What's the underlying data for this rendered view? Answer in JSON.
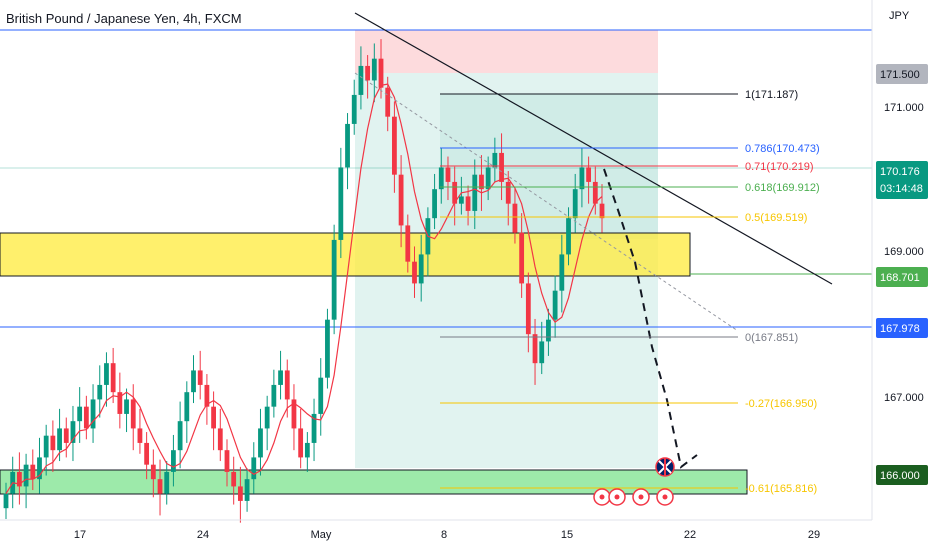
{
  "header": {
    "title": "British Pound / Japanese Yen, 4h, FXCM"
  },
  "axis": {
    "currency": "JPY",
    "ticks": [
      "171.000",
      "169.000",
      "167.000"
    ],
    "xticks": [
      "17",
      "24",
      "May",
      "8",
      "15",
      "22",
      "29"
    ]
  },
  "price_badges": [
    {
      "value": "171.500",
      "bg": "#b2b5be",
      "fg": "#131722"
    },
    {
      "value": "170.176",
      "sub": "03:14:48",
      "bg": "#089981",
      "fg": "#ffffff"
    },
    {
      "value": "168.701",
      "bg": "#4caf50",
      "fg": "#ffffff"
    },
    {
      "value": "167.978",
      "bg": "#2962ff",
      "fg": "#ffffff"
    },
    {
      "value": "166.000",
      "bg": "#1b5e20",
      "fg": "#ffffff"
    }
  ],
  "fib_levels": [
    {
      "label": "1(171.187)",
      "price": 171.187,
      "color": "#131722"
    },
    {
      "label": "0.786(170.473)",
      "price": 170.473,
      "color": "#2962ff"
    },
    {
      "label": "0.71(170.219)",
      "price": 170.219,
      "color": "#f23645"
    },
    {
      "label": "0.618(169.912)",
      "price": 169.912,
      "color": "#4caf50"
    },
    {
      "label": "0.5(169.519)",
      "price": 169.519,
      "color": "#f7c600"
    },
    {
      "label": "0(167.851)",
      "price": 167.851,
      "color": "#787b86"
    },
    {
      "label": "-0.27(166.950)",
      "price": 166.95,
      "color": "#f7c600"
    },
    {
      "label": "-0.61(165.816)",
      "price": 165.816,
      "color": "#f7c600"
    }
  ],
  "colors": {
    "up": "#089981",
    "down": "#f23645",
    "ma": "#f23645"
  },
  "chart_data": {
    "type": "candlestick",
    "title": "British Pound / Japanese Yen, 4h, FXCM",
    "ylabel": "JPY",
    "ylim": [
      165.33,
      172.93
    ],
    "close_series": [
      166.1,
      166.4,
      166.2,
      166.5,
      166.3,
      166.6,
      166.9,
      166.7,
      167.0,
      166.8,
      167.1,
      167.3,
      167.0,
      167.4,
      167.6,
      167.9,
      167.5,
      167.2,
      167.4,
      167.0,
      166.8,
      166.5,
      166.3,
      166.1,
      166.4,
      166.7,
      167.1,
      167.5,
      167.8,
      167.6,
      167.3,
      167.0,
      166.7,
      166.4,
      166.2,
      166.0,
      166.3,
      166.6,
      167.0,
      167.3,
      167.6,
      167.8,
      167.4,
      167.0,
      166.6,
      166.8,
      167.2,
      167.7,
      168.5,
      169.6,
      170.6,
      171.2,
      171.6,
      172.0,
      171.8,
      172.1,
      171.7,
      171.3,
      170.5,
      169.8,
      169.3,
      169.0,
      169.4,
      169.9,
      170.3,
      170.6,
      170.4,
      170.1,
      170.2,
      170.0,
      170.5,
      170.3,
      170.6,
      170.8,
      170.4,
      170.1,
      169.7,
      169.0,
      168.3,
      167.9,
      168.2,
      168.5,
      168.9,
      169.4,
      169.9,
      170.3,
      170.6,
      170.4,
      170.1,
      169.9
    ]
  },
  "bottom_icons": [
    "lightning-icon",
    "event-icon",
    "event-icon",
    "event-icon",
    "event-icon"
  ]
}
